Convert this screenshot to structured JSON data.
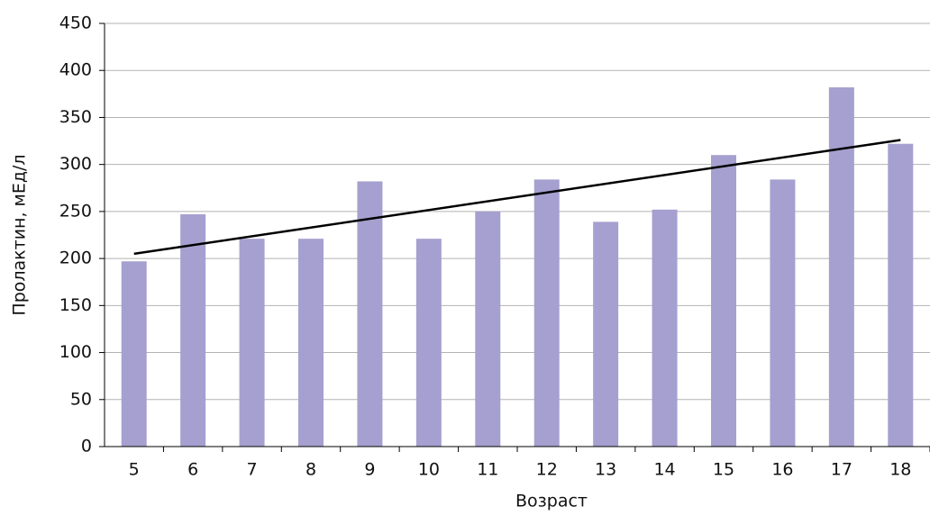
{
  "chart_data": {
    "type": "bar",
    "x_label": "Возраст",
    "y_label": "Пролактин, мЕд/л",
    "categories": [
      "5",
      "6",
      "7",
      "8",
      "9",
      "10",
      "11",
      "12",
      "13",
      "14",
      "15",
      "16",
      "17",
      "18"
    ],
    "values": [
      197,
      247,
      221,
      221,
      282,
      221,
      250,
      284,
      239,
      252,
      310,
      284,
      382,
      322
    ],
    "color": "#a5a0cf",
    "trend": {
      "values": [
        205,
        326
      ],
      "color": "#000000"
    },
    "ylim": [
      0,
      450
    ],
    "yticks": [
      0,
      50,
      100,
      150,
      200,
      250,
      300,
      350,
      400,
      450
    ],
    "grid": true
  }
}
